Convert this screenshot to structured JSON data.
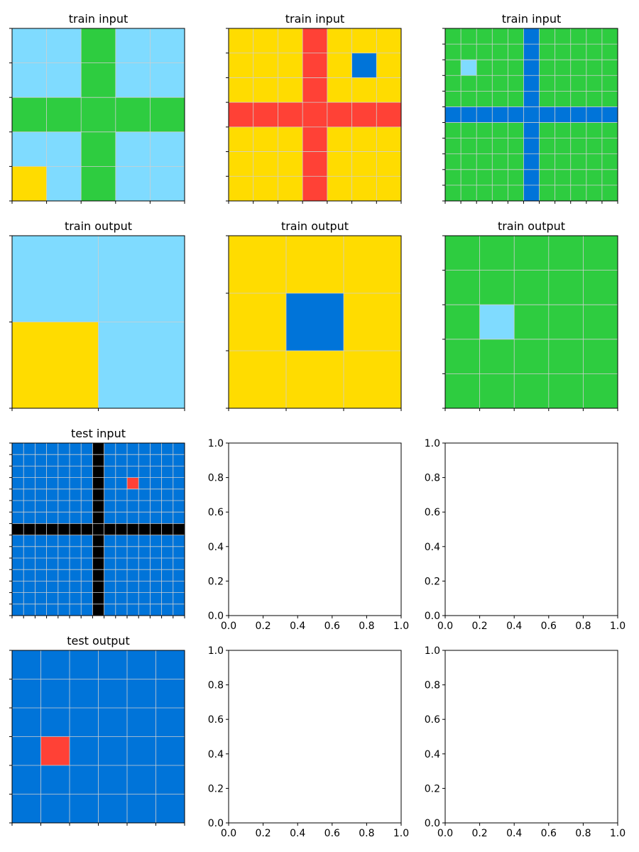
{
  "palette": {
    "0": "#000000",
    "1": "#0074D9",
    "2": "#FF4136",
    "3": "#2ECC40",
    "4": "#FFDC00",
    "8": "#7FDBFF"
  },
  "panels": [
    {
      "title": "train input",
      "grid": [
        [
          8,
          8,
          3,
          8,
          8
        ],
        [
          8,
          8,
          3,
          8,
          8
        ],
        [
          3,
          3,
          3,
          3,
          3
        ],
        [
          8,
          8,
          3,
          8,
          8
        ],
        [
          4,
          8,
          3,
          8,
          8
        ]
      ]
    },
    {
      "title": "train input",
      "grid": [
        [
          4,
          4,
          4,
          2,
          4,
          4,
          4
        ],
        [
          4,
          4,
          4,
          2,
          4,
          1,
          4
        ],
        [
          4,
          4,
          4,
          2,
          4,
          4,
          4
        ],
        [
          2,
          2,
          2,
          2,
          2,
          2,
          2
        ],
        [
          4,
          4,
          4,
          2,
          4,
          4,
          4
        ],
        [
          4,
          4,
          4,
          2,
          4,
          4,
          4
        ],
        [
          4,
          4,
          4,
          2,
          4,
          4,
          4
        ]
      ]
    },
    {
      "title": "train input",
      "grid": [
        [
          3,
          3,
          3,
          3,
          3,
          1,
          3,
          3,
          3,
          3,
          3
        ],
        [
          3,
          3,
          3,
          3,
          3,
          1,
          3,
          3,
          3,
          3,
          3
        ],
        [
          3,
          8,
          3,
          3,
          3,
          1,
          3,
          3,
          3,
          3,
          3
        ],
        [
          3,
          3,
          3,
          3,
          3,
          1,
          3,
          3,
          3,
          3,
          3
        ],
        [
          3,
          3,
          3,
          3,
          3,
          1,
          3,
          3,
          3,
          3,
          3
        ],
        [
          1,
          1,
          1,
          1,
          1,
          1,
          1,
          1,
          1,
          1,
          1
        ],
        [
          3,
          3,
          3,
          3,
          3,
          1,
          3,
          3,
          3,
          3,
          3
        ],
        [
          3,
          3,
          3,
          3,
          3,
          1,
          3,
          3,
          3,
          3,
          3
        ],
        [
          3,
          3,
          3,
          3,
          3,
          1,
          3,
          3,
          3,
          3,
          3
        ],
        [
          3,
          3,
          3,
          3,
          3,
          1,
          3,
          3,
          3,
          3,
          3
        ],
        [
          3,
          3,
          3,
          3,
          3,
          1,
          3,
          3,
          3,
          3,
          3
        ]
      ]
    },
    {
      "title": "train output",
      "grid": [
        [
          8,
          8
        ],
        [
          4,
          8
        ]
      ]
    },
    {
      "title": "train output",
      "grid": [
        [
          4,
          4,
          4
        ],
        [
          4,
          1,
          4
        ],
        [
          4,
          4,
          4
        ]
      ]
    },
    {
      "title": "train output",
      "grid": [
        [
          3,
          3,
          3,
          3,
          3
        ],
        [
          3,
          3,
          3,
          3,
          3
        ],
        [
          3,
          8,
          3,
          3,
          3
        ],
        [
          3,
          3,
          3,
          3,
          3
        ],
        [
          3,
          3,
          3,
          3,
          3
        ]
      ]
    },
    {
      "title": "test input",
      "grid": [
        [
          1,
          1,
          1,
          1,
          1,
          1,
          1,
          0,
          1,
          1,
          1,
          1,
          1,
          1,
          1
        ],
        [
          1,
          1,
          1,
          1,
          1,
          1,
          1,
          0,
          1,
          1,
          1,
          1,
          1,
          1,
          1
        ],
        [
          1,
          1,
          1,
          1,
          1,
          1,
          1,
          0,
          1,
          1,
          1,
          1,
          1,
          1,
          1
        ],
        [
          1,
          1,
          1,
          1,
          1,
          1,
          1,
          0,
          1,
          1,
          2,
          1,
          1,
          1,
          1
        ],
        [
          1,
          1,
          1,
          1,
          1,
          1,
          1,
          0,
          1,
          1,
          1,
          1,
          1,
          1,
          1
        ],
        [
          1,
          1,
          1,
          1,
          1,
          1,
          1,
          0,
          1,
          1,
          1,
          1,
          1,
          1,
          1
        ],
        [
          1,
          1,
          1,
          1,
          1,
          1,
          1,
          0,
          1,
          1,
          1,
          1,
          1,
          1,
          1
        ],
        [
          0,
          0,
          0,
          0,
          0,
          0,
          0,
          0,
          0,
          0,
          0,
          0,
          0,
          0,
          0
        ],
        [
          1,
          1,
          1,
          1,
          1,
          1,
          1,
          0,
          1,
          1,
          1,
          1,
          1,
          1,
          1
        ],
        [
          1,
          1,
          1,
          1,
          1,
          1,
          1,
          0,
          1,
          1,
          1,
          1,
          1,
          1,
          1
        ],
        [
          1,
          1,
          1,
          1,
          1,
          1,
          1,
          0,
          1,
          1,
          1,
          1,
          1,
          1,
          1
        ],
        [
          1,
          1,
          1,
          1,
          1,
          1,
          1,
          0,
          1,
          1,
          1,
          1,
          1,
          1,
          1
        ],
        [
          1,
          1,
          1,
          1,
          1,
          1,
          1,
          0,
          1,
          1,
          1,
          1,
          1,
          1,
          1
        ],
        [
          1,
          1,
          1,
          1,
          1,
          1,
          1,
          0,
          1,
          1,
          1,
          1,
          1,
          1,
          1
        ],
        [
          1,
          1,
          1,
          1,
          1,
          1,
          1,
          0,
          1,
          1,
          1,
          1,
          1,
          1,
          1
        ]
      ]
    },
    {
      "title": "",
      "grid": null,
      "axis_ticks": [
        "0.0",
        "0.2",
        "0.4",
        "0.6",
        "0.8",
        "1.0"
      ]
    },
    {
      "title": "",
      "grid": null,
      "axis_ticks": [
        "0.0",
        "0.2",
        "0.4",
        "0.6",
        "0.8",
        "1.0"
      ]
    },
    {
      "title": "test output",
      "grid": [
        [
          1,
          1,
          1,
          1,
          1,
          1
        ],
        [
          1,
          1,
          1,
          1,
          1,
          1
        ],
        [
          1,
          1,
          1,
          1,
          1,
          1
        ],
        [
          1,
          2,
          1,
          1,
          1,
          1
        ],
        [
          1,
          1,
          1,
          1,
          1,
          1
        ],
        [
          1,
          1,
          1,
          1,
          1,
          1
        ]
      ]
    },
    {
      "title": "",
      "grid": null,
      "axis_ticks": [
        "0.0",
        "0.2",
        "0.4",
        "0.6",
        "0.8",
        "1.0"
      ]
    },
    {
      "title": "",
      "grid": null,
      "axis_ticks": [
        "0.0",
        "0.2",
        "0.4",
        "0.6",
        "0.8",
        "1.0"
      ]
    }
  ]
}
